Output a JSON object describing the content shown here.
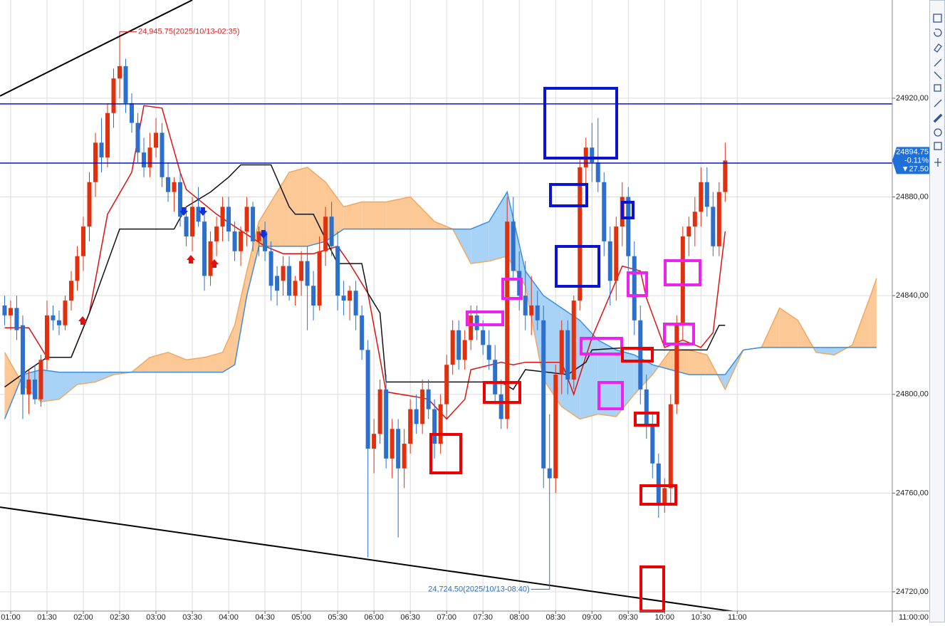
{
  "chart_data": {
    "type": "candlestick",
    "up_color": "#e2300f",
    "down_color": "#2c6fcc",
    "xlim": [
      -0.76,
      146.6
    ],
    "ylim": [
      24712.2,
      24959.8
    ],
    "grid": true,
    "ohlc": [
      [
        24836,
        24840,
        24828,
        24832
      ],
      [
        24832,
        24838,
        24826,
        24835
      ],
      [
        24835,
        24840,
        24822,
        24826
      ],
      [
        24828,
        24832,
        24790,
        24800
      ],
      [
        24800,
        24810,
        24792,
        24806
      ],
      [
        24806,
        24812,
        24796,
        24798
      ],
      [
        24798,
        24816,
        24795,
        24814
      ],
      [
        24814,
        24838,
        24810,
        24832
      ],
      [
        24832,
        24836,
        24826,
        24830
      ],
      [
        24830,
        24834,
        24824,
        24828
      ],
      [
        24828,
        24840,
        24826,
        24838
      ],
      [
        24838,
        24850,
        24834,
        24846
      ],
      [
        24846,
        24860,
        24842,
        24856
      ],
      [
        24856,
        24872,
        24850,
        24868
      ],
      [
        24868,
        24890,
        24862,
        24886
      ],
      [
        24886,
        24906,
        24880,
        24902
      ],
      [
        24902,
        24912,
        24890,
        24896
      ],
      [
        24896,
        24918,
        24892,
        24914
      ],
      [
        24914,
        24932,
        24908,
        24928
      ],
      [
        24928,
        24945.75,
        24920,
        24933
      ],
      [
        24933,
        24936,
        24914,
        24918
      ],
      [
        24918,
        24922,
        24906,
        24910
      ],
      [
        24910,
        24914,
        24894,
        24898
      ],
      [
        24898,
        24904,
        24888,
        24892
      ],
      [
        24892,
        24906,
        24888,
        24900
      ],
      [
        24900,
        24912,
        24896,
        24906
      ],
      [
        24906,
        24910,
        24884,
        24888
      ],
      [
        24888,
        24894,
        24878,
        24882
      ],
      [
        24882,
        24888,
        24874,
        24886
      ],
      [
        24886,
        24890,
        24868,
        24872
      ],
      [
        24872,
        24876,
        24860,
        24864
      ],
      [
        24864,
        24880,
        24858,
        24876
      ],
      [
        24876,
        24884,
        24868,
        24870
      ],
      [
        24870,
        24874,
        24842,
        24848
      ],
      [
        24848,
        24866,
        24844,
        24862
      ],
      [
        24862,
        24872,
        24856,
        24868
      ],
      [
        24868,
        24880,
        24862,
        24876
      ],
      [
        24876,
        24880,
        24862,
        24866
      ],
      [
        24866,
        24870,
        24854,
        24858
      ],
      [
        24858,
        24868,
        24852,
        24866
      ],
      [
        24866,
        24880,
        24860,
        24876
      ],
      [
        24876,
        24878,
        24858,
        24862
      ],
      [
        24862,
        24868,
        24856,
        24866
      ],
      [
        24866,
        24870,
        24854,
        24858
      ],
      [
        24858,
        24862,
        24838,
        24844
      ],
      [
        24848,
        24852,
        24836,
        24842
      ],
      [
        24846,
        24856,
        24840,
        24852
      ],
      [
        24852,
        24856,
        24838,
        24840
      ],
      [
        24840,
        24848,
        24836,
        24846
      ],
      [
        24846,
        24858,
        24840,
        24854
      ],
      [
        24854,
        24860,
        24826,
        24844
      ],
      [
        24844,
        24850,
        24830,
        24836
      ],
      [
        24836,
        24864,
        24834,
        24858
      ],
      [
        24858,
        24876,
        24852,
        24872
      ],
      [
        24872,
        24878,
        24856,
        24860
      ],
      [
        24860,
        24866,
        24834,
        24840
      ],
      [
        24840,
        24846,
        24832,
        24838
      ],
      [
        24838,
        24844,
        24830,
        24842
      ],
      [
        24842,
        24846,
        24826,
        24832
      ],
      [
        24832,
        24836,
        24814,
        24818
      ],
      [
        24818,
        24822,
        24734,
        24778
      ],
      [
        24778,
        24790,
        24768,
        24784
      ],
      [
        24784,
        24806,
        24780,
        24802
      ],
      [
        24802,
        24808,
        24770,
        24774
      ],
      [
        24774,
        24790,
        24766,
        24786
      ],
      [
        24786,
        24790,
        24742,
        24770
      ],
      [
        24770,
        24786,
        24762,
        24780
      ],
      [
        24780,
        24798,
        24776,
        24794
      ],
      [
        24794,
        24800,
        24784,
        24788
      ],
      [
        24788,
        24806,
        24784,
        24802
      ],
      [
        24802,
        24806,
        24790,
        24794
      ],
      [
        24794,
        24798,
        24774,
        24780
      ],
      [
        24780,
        24800,
        24776,
        24796
      ],
      [
        24796,
        24816,
        24790,
        24812
      ],
      [
        24812,
        24830,
        24808,
        24826
      ],
      [
        24826,
        24830,
        24810,
        24814
      ],
      [
        24814,
        24826,
        24810,
        24822
      ],
      [
        24822,
        24836,
        24818,
        24832
      ],
      [
        24832,
        24836,
        24822,
        24826
      ],
      [
        24826,
        24830,
        24816,
        24820
      ],
      [
        24820,
        24826,
        24810,
        24814
      ],
      [
        24814,
        24820,
        24796,
        24800
      ],
      [
        24800,
        24806,
        24786,
        24790
      ],
      [
        24790,
        24880,
        24786,
        24870
      ],
      [
        24870,
        24880,
        24846,
        24850
      ],
      [
        24850,
        24858,
        24834,
        24840
      ],
      [
        24840,
        24854,
        24826,
        24832
      ],
      [
        24832,
        24848,
        24824,
        24836
      ],
      [
        24836,
        24842,
        24826,
        24830
      ],
      [
        24830,
        24836,
        24762,
        24770
      ],
      [
        24770,
        24792,
        24724.5,
        24766
      ],
      [
        24766,
        24812,
        24760,
        24808
      ],
      [
        24808,
        24830,
        24800,
        24826
      ],
      [
        24826,
        24830,
        24800,
        24806
      ],
      [
        24806,
        24840,
        24802,
        24838
      ],
      [
        24838,
        24896,
        24834,
        24892
      ],
      [
        24892,
        24904,
        24880,
        24900
      ],
      [
        24900,
        24910,
        24886,
        24894
      ],
      [
        24894,
        24912,
        24882,
        24886
      ],
      [
        24886,
        24890,
        24856,
        24862
      ],
      [
        24862,
        24868,
        24836,
        24846
      ],
      [
        24846,
        24872,
        24838,
        24868
      ],
      [
        24868,
        24886,
        24860,
        24880
      ],
      [
        24880,
        24884,
        24850,
        24856
      ],
      [
        24856,
        24862,
        24824,
        24830
      ],
      [
        24830,
        24836,
        24796,
        24802
      ],
      [
        24802,
        24808,
        24782,
        24788
      ],
      [
        24788,
        24792,
        24766,
        24772
      ],
      [
        24772,
        24776,
        24750,
        24756
      ],
      [
        24756,
        24766,
        24752,
        24762
      ],
      [
        24762,
        24800,
        24756,
        24796
      ],
      [
        24796,
        24832,
        24792,
        24828
      ],
      [
        24828,
        24868,
        24822,
        24864
      ],
      [
        24864,
        24872,
        24856,
        24868
      ],
      [
        24868,
        24880,
        24860,
        24874
      ],
      [
        24874,
        24892,
        24868,
        24886
      ],
      [
        24886,
        24892,
        24872,
        24876
      ],
      [
        24876,
        24882,
        24856,
        24860
      ],
      [
        24860,
        24886,
        24856,
        24882
      ],
      [
        24882,
        24902,
        24878,
        24894.75
      ]
    ],
    "xticks": [
      {
        "value": 1,
        "label": "01:00"
      },
      {
        "value": 7,
        "label": "01:30"
      },
      {
        "value": 13,
        "label": "02:00"
      },
      {
        "value": 19,
        "label": "02:30"
      },
      {
        "value": 25,
        "label": "03:00"
      },
      {
        "value": 31,
        "label": "03:30"
      },
      {
        "value": 37,
        "label": "04:00"
      },
      {
        "value": 43,
        "label": "04:30"
      },
      {
        "value": 49,
        "label": "05:00"
      },
      {
        "value": 55,
        "label": "05:30"
      },
      {
        "value": 61,
        "label": "06:00"
      },
      {
        "value": 67,
        "label": "06:30"
      },
      {
        "value": 73,
        "label": "07:00"
      },
      {
        "value": 79,
        "label": "07:30"
      },
      {
        "value": 85,
        "label": "08:00"
      },
      {
        "value": 91,
        "label": "08:30"
      },
      {
        "value": 97,
        "label": "09:00"
      },
      {
        "value": 103,
        "label": "09:30"
      },
      {
        "value": 109,
        "label": "10:00"
      },
      {
        "value": 115,
        "label": "10:30"
      },
      {
        "value": 121,
        "label": "11:00"
      }
    ],
    "yticks": [
      {
        "value": 24720,
        "label": "24720,00"
      },
      {
        "value": 24760,
        "label": "24760,00"
      },
      {
        "value": 24800,
        "label": "24800,00"
      },
      {
        "value": 24840,
        "label": "24840,00"
      },
      {
        "value": 24880,
        "label": "24880,00"
      },
      {
        "value": 24920,
        "label": "24920,00"
      }
    ],
    "cursor_time": "11:00:00",
    "hlines": [
      {
        "value": 24917.7,
        "color": "#0a14d0"
      },
      {
        "value": 24893.7,
        "color": "#0a14d0"
      }
    ],
    "trendlines": [
      {
        "color": "#000000",
        "x": [
          -0.76,
          31
        ],
        "values": [
          24920.9,
          24959.8
        ]
      },
      {
        "color": "#000000",
        "x": [
          -0.76,
          121.6
        ],
        "values": [
          24754.3,
          24711.6
        ]
      }
    ],
    "cloud": {
      "color_a": "#f0a860",
      "color_b": "#3a8ee0",
      "fill_a": "#fbc896",
      "fill_b": "#a9d2f7",
      "x": [
        0,
        3,
        6,
        9,
        12,
        15,
        18,
        21,
        24,
        27,
        30,
        33,
        36,
        38,
        40,
        42,
        44,
        47,
        50,
        53,
        56,
        59,
        63,
        67,
        71,
        74,
        77,
        80,
        83,
        86,
        89,
        92,
        95,
        98,
        101,
        104,
        107,
        110,
        113,
        116,
        119,
        122,
        125,
        128,
        131,
        134,
        137,
        140,
        143,
        144
      ],
      "span_a": [
        24817,
        24804,
        24797,
        24798,
        24804,
        24805,
        24808,
        24809,
        24815,
        24817,
        24814,
        24815,
        24817,
        24828,
        24850,
        24870,
        24878,
        24890,
        24892,
        24886,
        24876,
        24878,
        24878,
        24880,
        24870,
        24867,
        24853,
        24854,
        24856,
        24844,
        24806,
        24795,
        24790,
        24792,
        24791,
        24800,
        24808,
        24818,
        24818,
        24816,
        24802,
        24818,
        24819,
        24835,
        24830,
        24817,
        24816,
        24820,
        24840,
        24847
      ],
      "span_b": [
        24790,
        24808,
        24810,
        24809,
        24809,
        24809,
        24809,
        24809,
        24809,
        24809,
        24809,
        24809,
        24809,
        24812,
        24840,
        24860,
        24860,
        24860,
        24860,
        24862,
        24867,
        24867,
        24867,
        24867,
        24867,
        24867,
        24867,
        24870,
        24882,
        24850,
        24840,
        24835,
        24830,
        24822,
        24818,
        24816,
        24812,
        24810,
        24808,
        24808,
        24808,
        24818,
        24819,
        24819,
        24819,
        24819,
        24819,
        24819,
        24819,
        24819
      ]
    },
    "overlays": [
      {
        "color": "#e01010",
        "x": [
          0,
          4,
          7,
          11,
          14,
          17,
          21,
          23,
          26,
          29,
          30,
          35,
          38,
          43,
          46,
          51,
          55,
          57,
          60,
          63,
          68,
          70,
          73,
          76,
          77,
          82,
          84,
          86,
          92,
          94,
          97,
          102,
          105,
          106,
          109,
          112,
          115,
          117,
          119
        ],
        "values": [
          24827,
          24827,
          24815,
          24815,
          24833,
          24873,
          24890,
          24917,
          24916,
          24890,
          24883,
          24873,
          24868,
          24860,
          24857,
          24857,
          24860,
          24853,
          24841,
          24801,
          24799,
          24798,
          24790,
          24798,
          24810,
          24813,
          24812,
          24813,
          24813,
          24800,
          24823,
          24852,
          24850,
          24839,
          24819,
          24822,
          24819,
          24825,
          24866
        ]
      },
      {
        "color": "#111111",
        "x": [
          0,
          4,
          7,
          11,
          14,
          19,
          28,
          30,
          34,
          37,
          39,
          44,
          47,
          48,
          51,
          55,
          59,
          60,
          62,
          63,
          82,
          84,
          86,
          93,
          96,
          97,
          103,
          105,
          116,
          118,
          119
        ],
        "values": [
          24803,
          24810,
          24815,
          24815,
          24833,
          24867,
          24867,
          24876,
          24882,
          24888,
          24893,
          24893,
          24876,
          24873,
          24873,
          24853,
          24853,
          24841,
          24833,
          24805,
          24805,
          24802,
          24810,
          24808,
          24813,
          24818,
          24819,
          24818,
          24818,
          24828,
          24828
        ]
      }
    ],
    "annotations": [
      {
        "text": "24,945.75(2025/10/13-02:35)",
        "value": 24945.75,
        "color": "#d22"
      },
      {
        "text": "24,724.50(2025/10/13-08:40)",
        "value": 24724.5,
        "color": "#2a6fc0"
      }
    ],
    "last_price": {
      "value": 24894.75,
      "change_pct": "-0.11%",
      "change": "▼27.50",
      "color": "#1f6fd8"
    }
  }
}
